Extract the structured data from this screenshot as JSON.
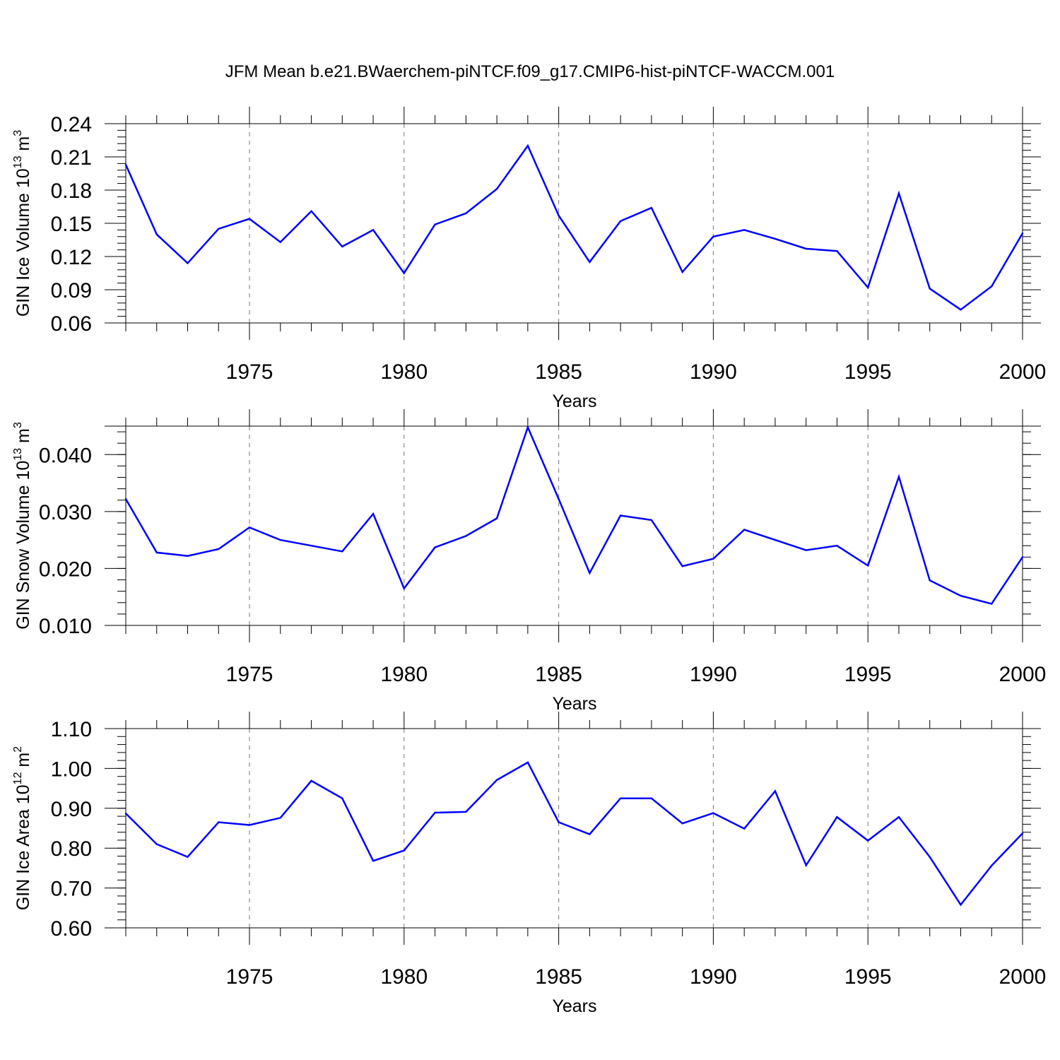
{
  "title": "JFM Mean b.e21.BWaerchem-piNTCF.f09_g17.CMIP6-hist-piNTCF-WACCM.001",
  "colors": {
    "line": "#0000ff",
    "axis": "#000000",
    "grid": "#777777"
  },
  "chart_data": [
    {
      "type": "line",
      "title": "",
      "xlabel": "Years",
      "ylabel": "GIN Ice Volume 10",
      "ylabel_exp": "13",
      "ylabel_unit": " m",
      "ylabel_unit_exp": "3",
      "xlim": [
        1971,
        2000
      ],
      "ylim": [
        0.06,
        0.24
      ],
      "yticks": [
        0.06,
        0.09,
        0.12,
        0.15,
        0.18,
        0.21,
        0.24
      ],
      "yminor": 0.006,
      "ydecimals": 2,
      "xticks": [
        1975,
        1980,
        1985,
        1990,
        1995,
        2000
      ],
      "grid": "vertical dashed at major x ticks",
      "x": [
        1971,
        1972,
        1973,
        1974,
        1975,
        1976,
        1977,
        1978,
        1979,
        1980,
        1981,
        1982,
        1983,
        1984,
        1985,
        1986,
        1987,
        1988,
        1989,
        1990,
        1991,
        1992,
        1993,
        1994,
        1995,
        1996,
        1997,
        1998,
        1999,
        2000
      ],
      "series": [
        {
          "values": [
            0.203,
            0.14,
            0.114,
            0.145,
            0.154,
            0.133,
            0.161,
            0.129,
            0.144,
            0.105,
            0.149,
            0.159,
            0.181,
            0.22,
            0.157,
            0.115,
            0.152,
            0.164,
            0.106,
            0.138,
            0.144,
            0.136,
            0.127,
            0.125,
            0.092,
            0.177,
            0.091,
            0.072,
            0.093,
            0.141
          ]
        }
      ]
    },
    {
      "type": "line",
      "title": "",
      "xlabel": "Years",
      "ylabel": "GIN Snow Volume 10",
      "ylabel_exp": "13",
      "ylabel_unit": " m",
      "ylabel_unit_exp": "3",
      "xlim": [
        1971,
        2000
      ],
      "ylim": [
        0.01,
        0.045
      ],
      "yticks": [
        0.01,
        0.02,
        0.03,
        0.04
      ],
      "yminor": 0.002,
      "ydecimals": 3,
      "xticks": [
        1975,
        1980,
        1985,
        1990,
        1995,
        2000
      ],
      "grid": "vertical dashed at major x ticks",
      "x": [
        1971,
        1972,
        1973,
        1974,
        1975,
        1976,
        1977,
        1978,
        1979,
        1980,
        1981,
        1982,
        1983,
        1984,
        1985,
        1986,
        1987,
        1988,
        1989,
        1990,
        1991,
        1992,
        1993,
        1994,
        1995,
        1996,
        1997,
        1998,
        1999,
        2000
      ],
      "series": [
        {
          "values": [
            0.0322,
            0.0228,
            0.0222,
            0.0234,
            0.0272,
            0.025,
            0.024,
            0.023,
            0.0296,
            0.0165,
            0.0237,
            0.0257,
            0.0288,
            0.0448,
            0.0322,
            0.0192,
            0.0293,
            0.0285,
            0.0204,
            0.0217,
            0.0268,
            0.025,
            0.0232,
            0.024,
            0.0205,
            0.0361,
            0.0179,
            0.0152,
            0.0138,
            0.022
          ]
        }
      ]
    },
    {
      "type": "line",
      "title": "",
      "xlabel": "Years",
      "ylabel": "GIN Ice Area 10",
      "ylabel_exp": "12",
      "ylabel_unit": " m",
      "ylabel_unit_exp": "2",
      "xlim": [
        1971,
        2000
      ],
      "ylim": [
        0.6,
        1.1
      ],
      "yticks": [
        0.6,
        0.7,
        0.8,
        0.9,
        1.0,
        1.1
      ],
      "yminor": 0.02,
      "ydecimals": 2,
      "xticks": [
        1975,
        1980,
        1985,
        1990,
        1995,
        2000
      ],
      "grid": "vertical dashed at major x ticks",
      "x": [
        1971,
        1972,
        1973,
        1974,
        1975,
        1976,
        1977,
        1978,
        1979,
        1980,
        1981,
        1982,
        1983,
        1984,
        1985,
        1986,
        1987,
        1988,
        1989,
        1990,
        1991,
        1992,
        1993,
        1994,
        1995,
        1996,
        1997,
        1998,
        1999,
        2000
      ],
      "series": [
        {
          "values": [
            0.887,
            0.81,
            0.778,
            0.865,
            0.858,
            0.876,
            0.969,
            0.925,
            0.768,
            0.794,
            0.889,
            0.891,
            0.971,
            1.015,
            0.865,
            0.835,
            0.925,
            0.925,
            0.862,
            0.888,
            0.849,
            0.943,
            0.757,
            0.878,
            0.819,
            0.878,
            0.778,
            0.658,
            0.756,
            0.837
          ]
        }
      ]
    }
  ]
}
